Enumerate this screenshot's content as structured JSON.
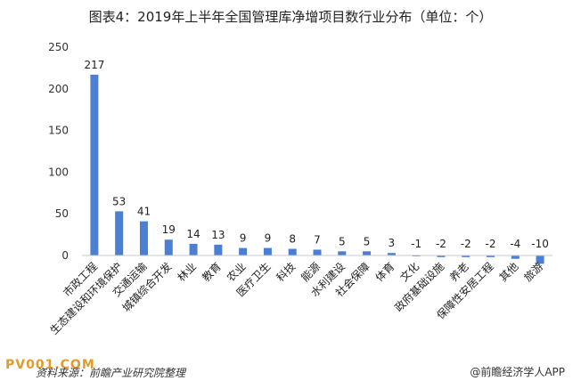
{
  "chart_data": {
    "type": "bar",
    "title": "图表4：2019年上半年全国管理库净增项目数行业分布（单位：个）",
    "xlabel": "",
    "ylabel": "",
    "ylim": [
      -10,
      250
    ],
    "yticks": [
      0,
      50,
      100,
      150,
      200,
      250
    ],
    "grid": false,
    "categories": [
      "市政工程",
      "生态建设和环境保护",
      "交通运输",
      "城镇综合开发",
      "林业",
      "教育",
      "农业",
      "医疗卫生",
      "科技",
      "能源",
      "水利建设",
      "社会保障",
      "体育",
      "文化",
      "政府基础设施",
      "养老",
      "保障性安居工程",
      "其他",
      "旅游"
    ],
    "values": [
      217,
      53,
      41,
      19,
      14,
      13,
      9,
      9,
      8,
      7,
      5,
      5,
      3,
      -1,
      -2,
      -2,
      -2,
      -4,
      -10
    ],
    "bar_color": "#4a7fd4"
  },
  "footer": {
    "source": "资料来源：前瞻产业研究院整理",
    "brand": "@前瞻经济学人APP",
    "site": "PV001.COM"
  }
}
